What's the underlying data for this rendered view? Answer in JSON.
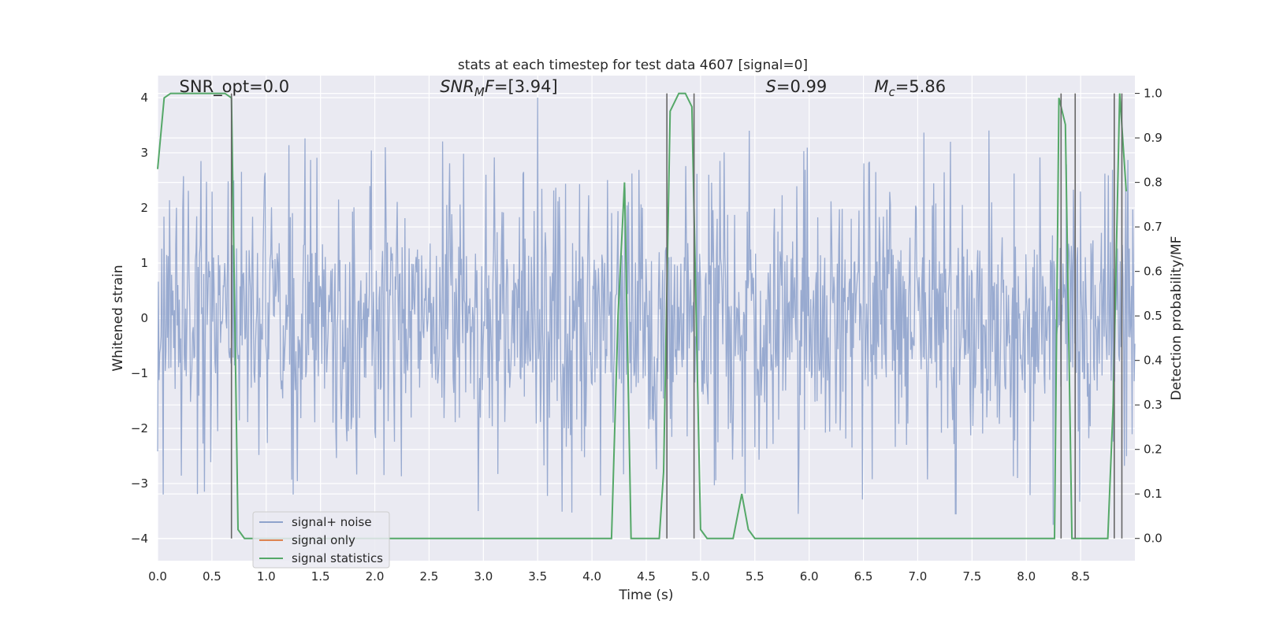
{
  "chart_data": {
    "type": "line",
    "title": "stats at each timestep for test data 4607 [signal=0]",
    "xlabel": "Time (s)",
    "ylabel": "Whitened strain",
    "y2label": "Detection probability/MF",
    "xlim": [
      0.0,
      9.0
    ],
    "ylim": [
      -4.4,
      4.4
    ],
    "y2lim": [
      -0.05,
      1.04
    ],
    "xticks": [
      0.0,
      0.5,
      1.0,
      1.5,
      2.0,
      2.5,
      3.0,
      3.5,
      4.0,
      4.5,
      5.0,
      5.5,
      6.0,
      6.5,
      7.0,
      7.5,
      8.0,
      8.5
    ],
    "xtick_labels": [
      "0.0",
      "0.5",
      "1.0",
      "1.5",
      "2.0",
      "2.5",
      "3.0",
      "3.5",
      "4.0",
      "4.5",
      "5.0",
      "5.5",
      "6.0",
      "6.5",
      "7.0",
      "7.5",
      "8.0",
      "8.5"
    ],
    "yticks": [
      -4,
      -3,
      -2,
      -1,
      0,
      1,
      2,
      3,
      4
    ],
    "ytick_labels": [
      "−4",
      "−3",
      "−2",
      "−1",
      "0",
      "1",
      "2",
      "3",
      "4"
    ],
    "y2ticks": [
      0.0,
      0.1,
      0.2,
      0.3,
      0.4,
      0.5,
      0.6,
      0.7,
      0.8,
      0.9,
      1.0
    ],
    "y2tick_labels": [
      "0.0",
      "0.1",
      "0.2",
      "0.3",
      "0.4",
      "0.5",
      "0.6",
      "0.7",
      "0.8",
      "0.9",
      "1.0"
    ],
    "grid": true,
    "legend_position": "lower-left",
    "annotations": [
      {
        "text_pre": "SNR_opt=0.0",
        "sub": "",
        "text_post": "",
        "x": 0.2,
        "italic": false
      },
      {
        "text_pre": "SNR",
        "sub": "M",
        "text_post": "F=[3.94]",
        "x": 2.6,
        "italic": true
      },
      {
        "text_pre": "S",
        "sub": "",
        "text_post": "=0.99",
        "x": 5.6,
        "italic": true
      },
      {
        "text_pre": "M",
        "sub": "c",
        "text_post": "=5.86",
        "x": 6.6,
        "italic": true
      }
    ],
    "annotation_y": 4.1,
    "series": [
      {
        "name": "signal+ noise",
        "color": "#8fa3cc",
        "axis": "left",
        "style": "noise",
        "envelope": 1.6,
        "spike_max": 3.6,
        "extremes": [
          {
            "x": 3.5,
            "y": 4.0
          },
          {
            "x": 2.1,
            "y": 3.1
          },
          {
            "x": 5.45,
            "y": 3.4
          },
          {
            "x": 7.3,
            "y": 3.2
          },
          {
            "x": 0.05,
            "y": -3.2
          },
          {
            "x": 1.25,
            "y": -3.2
          },
          {
            "x": 2.95,
            "y": -3.5
          },
          {
            "x": 5.9,
            "y": -3.55
          },
          {
            "x": 7.35,
            "y": -3.55
          },
          {
            "x": 8.25,
            "y": -3.75
          }
        ]
      },
      {
        "name": "signal only",
        "color": "#dd8452",
        "axis": "left",
        "style": "line",
        "x": [],
        "y": []
      },
      {
        "name": "signal statistics",
        "color": "#55a868",
        "axis": "right",
        "style": "line",
        "x": [
          0.0,
          0.06,
          0.12,
          0.5,
          0.62,
          0.68,
          0.74,
          0.8,
          0.9,
          1.2,
          4.18,
          4.24,
          4.3,
          4.36,
          4.4,
          4.62,
          4.66,
          4.72,
          4.8,
          4.86,
          4.92,
          5.0,
          5.06,
          5.2,
          5.3,
          5.38,
          5.44,
          5.5,
          8.26,
          8.3,
          8.36,
          8.42,
          8.5,
          8.55,
          8.75,
          8.8,
          8.86,
          8.92
        ],
        "y": [
          0.83,
          0.99,
          1.0,
          1.0,
          1.0,
          0.99,
          0.02,
          0.0,
          0.0,
          0.0,
          0.0,
          0.5,
          0.8,
          0.0,
          0.0,
          0.0,
          0.15,
          0.96,
          1.0,
          1.0,
          0.97,
          0.02,
          0.0,
          0.0,
          0.0,
          0.1,
          0.02,
          0.0,
          0.0,
          0.99,
          0.93,
          0.0,
          0.0,
          0.0,
          0.0,
          0.3,
          1.0,
          0.78
        ]
      }
    ],
    "vlines": {
      "color": "#666666",
      "x": [
        0.68,
        4.69,
        4.94,
        8.32,
        8.45,
        8.81,
        8.88
      ],
      "y2_range": [
        0.0,
        1.0
      ]
    }
  }
}
